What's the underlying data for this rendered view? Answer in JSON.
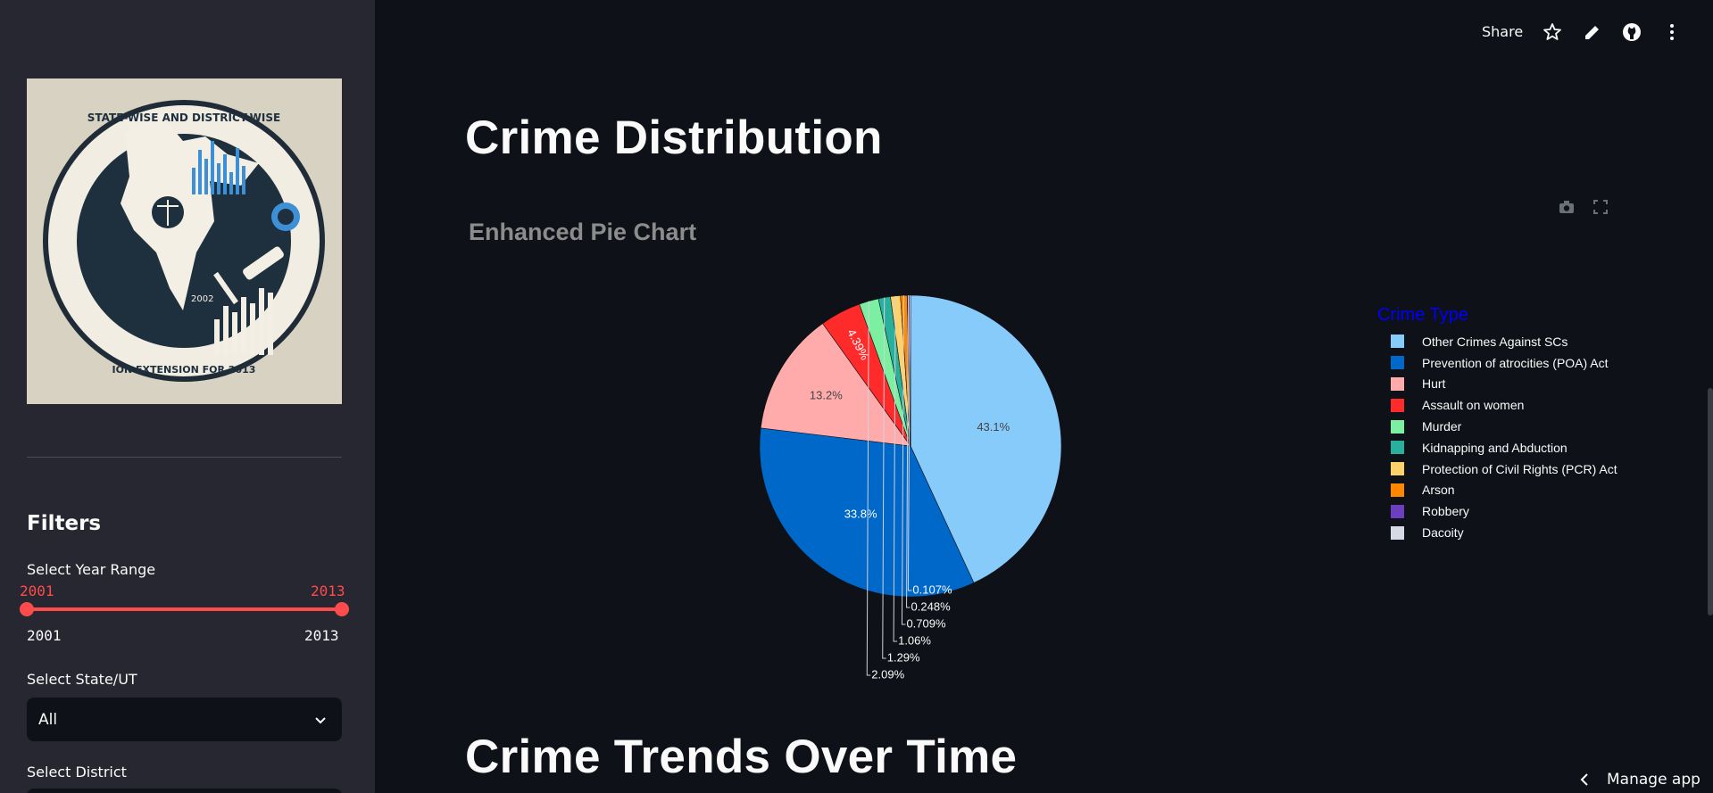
{
  "sidebar": {
    "filters_title": "Filters",
    "year_range": {
      "label": "Select Year Range",
      "min_selected": "2001",
      "max_selected": "2013",
      "min_bound": "2001",
      "max_bound": "2013"
    },
    "state": {
      "label": "Select State/UT",
      "value": "All"
    },
    "district": {
      "label": "Select District"
    },
    "logo_text": "STATE-WISE AND DISTRICT-WISE • 2002 • EXTENSION FOR 2013"
  },
  "header": {
    "share_label": "Share",
    "icons": [
      "star-icon",
      "edit-icon",
      "github-icon",
      "more-vert-icon"
    ]
  },
  "main": {
    "title": "Crime Distribution",
    "chart_title": "Enhanced Pie Chart",
    "next_title": "Crime Trends Over Time"
  },
  "chart_data": {
    "type": "pie",
    "title": "Enhanced Pie Chart",
    "legend_title": "Crime Type",
    "legend_position": "right",
    "categories": [
      "Other Crimes Against SCs",
      "Prevention of atrocities (POA) Act",
      "Hurt",
      "Assault on women",
      "Murder",
      "Kidnapping and Abduction",
      "Protection of Civil Rights (PCR) Act",
      "Arson",
      "Robbery",
      "Dacoity"
    ],
    "values": [
      43.1,
      33.8,
      13.2,
      4.39,
      2.09,
      1.29,
      1.06,
      0.709,
      0.248,
      0.107
    ],
    "labels": [
      "43.1%",
      "33.8%",
      "13.2%",
      "4.39%",
      "2.09%",
      "1.29%",
      "1.06%",
      "0.709%",
      "0.248%",
      "0.107%"
    ],
    "colors": [
      "#87cbfa",
      "#0068c9",
      "#ffabab",
      "#ff2b2b",
      "#7defa1",
      "#29b09d",
      "#ffd16a",
      "#ff8700",
      "#6d3fc0",
      "#d5dae5"
    ]
  },
  "footer": {
    "manage_label": "Manage app"
  }
}
